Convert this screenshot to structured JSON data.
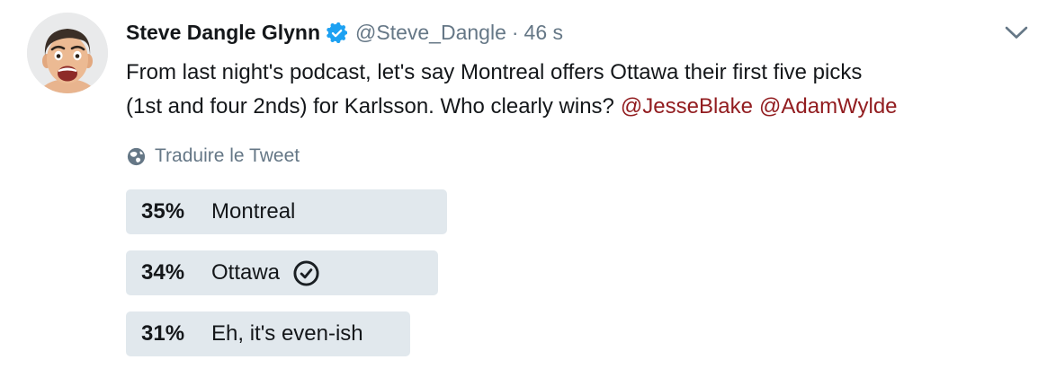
{
  "tweet": {
    "author": {
      "name": "Steve Dangle Glynn",
      "handle": "@Steve_Dangle",
      "separator": "·",
      "timestamp": "46 s",
      "verified": true
    },
    "text_lines": [
      "From last night's podcast, let's say Montreal offers Ottawa their first five picks",
      "(1st and four 2nds) for Karlsson. Who clearly wins?"
    ],
    "mentions": [
      "@JesseBlake",
      "@AdamWylde"
    ],
    "translate_label": "Traduire le Tweet",
    "poll": {
      "options": [
        {
          "percent_label": "35%",
          "value": 35,
          "label": "Montreal",
          "voted": false
        },
        {
          "percent_label": "34%",
          "value": 34,
          "label": "Ottawa",
          "voted": true
        },
        {
          "percent_label": "31%",
          "value": 31,
          "label": "Eh, it's even-ish",
          "voted": false
        }
      ]
    }
  },
  "icons": {
    "verified": "verified-badge",
    "globe": "translate-globe",
    "chevron": "chevron-down",
    "check": "vote-checkmark"
  },
  "colors": {
    "verified_blue": "#1DA1F2",
    "mention_link": "#921D20",
    "muted_gray": "#657786",
    "poll_bar_bg": "#E1E8ED",
    "text_primary": "#14171A"
  }
}
